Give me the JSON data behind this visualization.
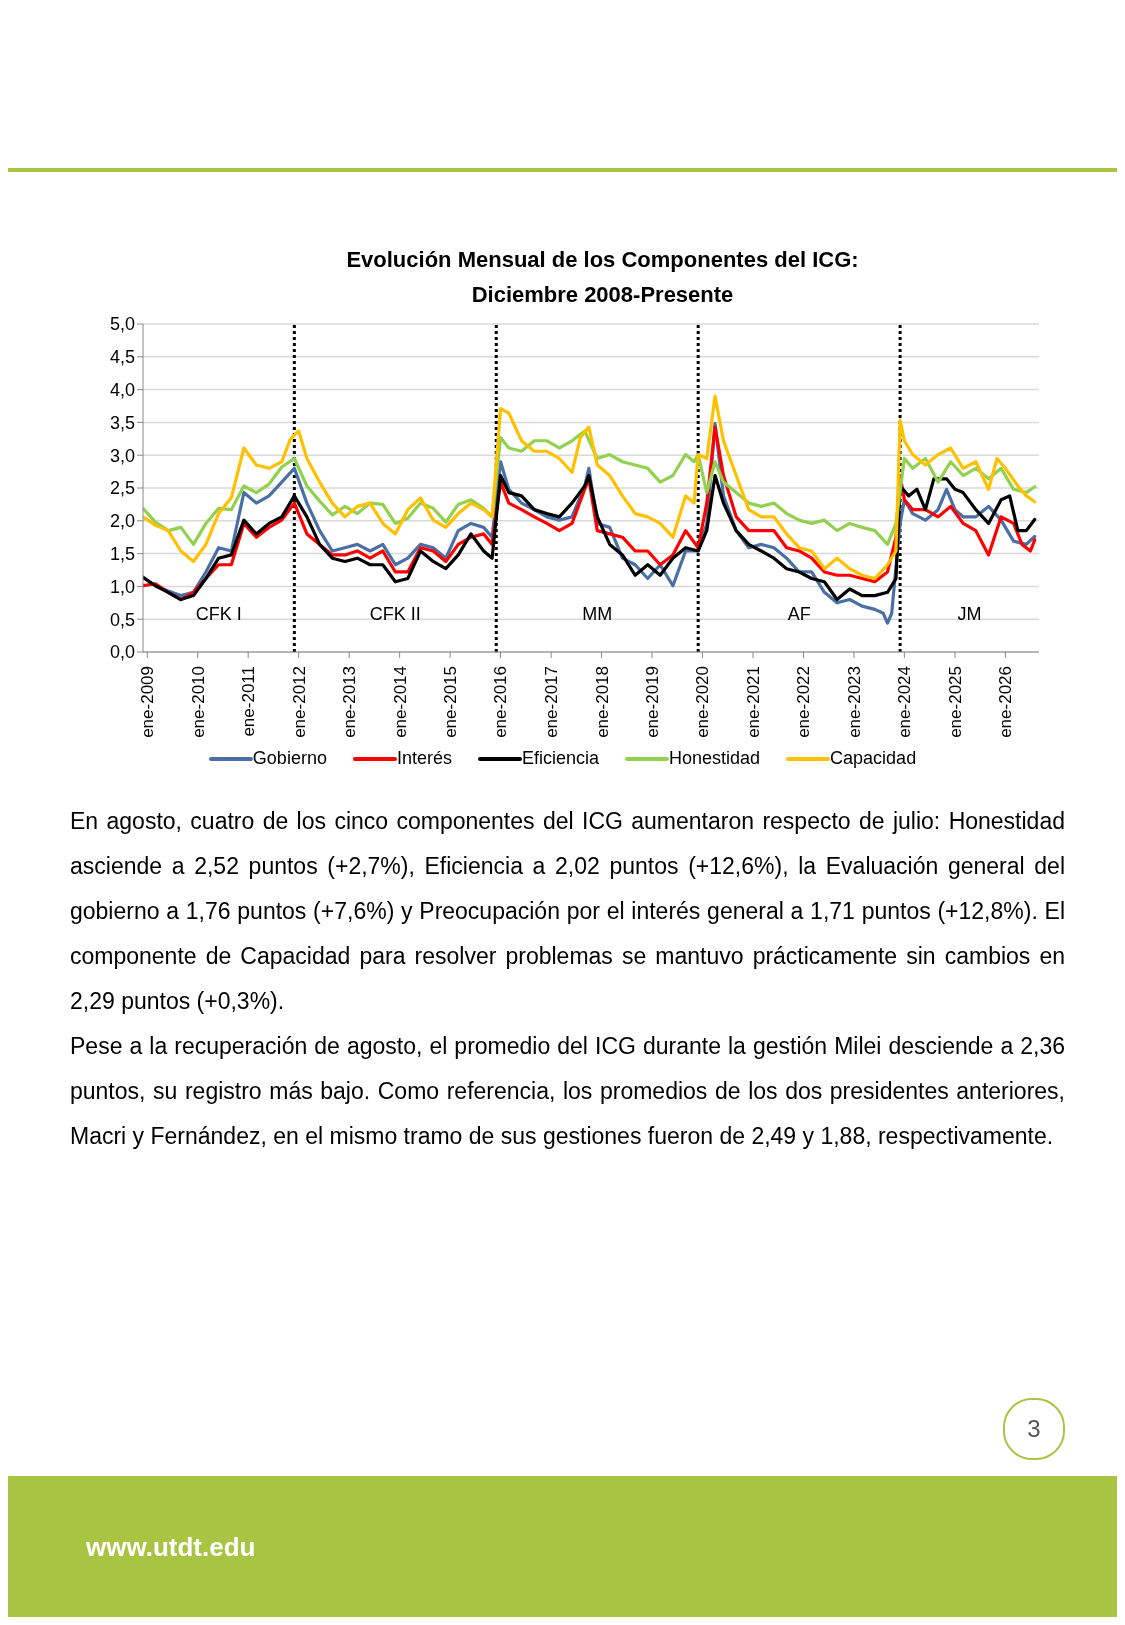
{
  "chart_data": {
    "type": "line",
    "title": "Evolución Mensual de los Componentes del ICG:\nDiciembre 2008-Presente",
    "xlim": [
      "2008-12",
      "2026-09"
    ],
    "xticks": [
      {
        "value": "2009-01",
        "label": "ene-2009"
      },
      {
        "value": "2010-01",
        "label": "ene-2010"
      },
      {
        "value": "2011-01",
        "label": "ene-2011"
      },
      {
        "value": "2012-01",
        "label": "ene-2012"
      },
      {
        "value": "2013-01",
        "label": "ene-2013"
      },
      {
        "value": "2014-01",
        "label": "ene-2014"
      },
      {
        "value": "2015-01",
        "label": "ene-2015"
      },
      {
        "value": "2016-01",
        "label": "ene-2016"
      },
      {
        "value": "2017-01",
        "label": "ene-2017"
      },
      {
        "value": "2018-01",
        "label": "ene-2018"
      },
      {
        "value": "2019-01",
        "label": "ene-2019"
      },
      {
        "value": "2020-01",
        "label": "ene-2020"
      },
      {
        "value": "2021-01",
        "label": "ene-2021"
      },
      {
        "value": "2022-01",
        "label": "ene-2022"
      },
      {
        "value": "2023-01",
        "label": "ene-2023"
      },
      {
        "value": "2024-01",
        "label": "ene-2024"
      },
      {
        "value": "2025-01",
        "label": "ene-2025"
      },
      {
        "value": "2026-01",
        "label": "ene-2026"
      }
    ],
    "ylim": [
      0,
      5
    ],
    "yticks": [
      {
        "value": 0,
        "label": "0,0"
      },
      {
        "value": 0.5,
        "label": "0,5"
      },
      {
        "value": 1,
        "label": "1,0"
      },
      {
        "value": 1.5,
        "label": "1,5"
      },
      {
        "value": 2,
        "label": "2,0"
      },
      {
        "value": 2.5,
        "label": "2,5"
      },
      {
        "value": 3,
        "label": "3,0"
      },
      {
        "value": 3.5,
        "label": "3,5"
      },
      {
        "value": 4,
        "label": "4,0"
      },
      {
        "value": 4.5,
        "label": "4,5"
      },
      {
        "value": 5,
        "label": "5,0"
      }
    ],
    "grid": "y",
    "legend": "bottom",
    "line_style": "solid",
    "series": [
      {
        "name": "Gobierno",
        "color": "#4a6fa5",
        "x": [
          "2008-12",
          "2009-03",
          "2009-06",
          "2009-09",
          "2009-12",
          "2010-03",
          "2010-06",
          "2010-09",
          "2010-12",
          "2011-03",
          "2011-06",
          "2011-09",
          "2011-12",
          "2012-03",
          "2012-06",
          "2012-09",
          "2012-12",
          "2013-03",
          "2013-06",
          "2013-09",
          "2013-12",
          "2014-03",
          "2014-06",
          "2014-09",
          "2014-12",
          "2015-03",
          "2015-06",
          "2015-09",
          "2015-11",
          "2016-01",
          "2016-03",
          "2016-06",
          "2016-09",
          "2016-12",
          "2017-03",
          "2017-06",
          "2017-09",
          "2017-10",
          "2017-12",
          "2018-03",
          "2018-06",
          "2018-09",
          "2018-12",
          "2019-03",
          "2019-06",
          "2019-09",
          "2019-12",
          "2020-02",
          "2020-04",
          "2020-06",
          "2020-09",
          "2020-12",
          "2021-03",
          "2021-06",
          "2021-09",
          "2021-12",
          "2022-03",
          "2022-06",
          "2022-09",
          "2022-12",
          "2023-03",
          "2023-06",
          "2023-08",
          "2023-09",
          "2023-10",
          "2023-12",
          "2024-01",
          "2024-03",
          "2024-06",
          "2024-09",
          "2024-11",
          "2025-01",
          "2025-03",
          "2025-06",
          "2025-09",
          "2025-12",
          "2026-03",
          "2026-06",
          "2026-08"
        ],
        "values": [
          1.14,
          1.01,
          0.93,
          0.86,
          0.91,
          1.22,
          1.59,
          1.54,
          2.43,
          2.27,
          2.38,
          2.59,
          2.8,
          2.27,
          1.85,
          1.54,
          1.59,
          1.64,
          1.54,
          1.64,
          1.33,
          1.43,
          1.64,
          1.59,
          1.43,
          1.85,
          1.96,
          1.9,
          1.75,
          2.9,
          2.48,
          2.27,
          2.17,
          2.06,
          2.01,
          2.06,
          2.53,
          2.8,
          1.96,
          1.9,
          1.43,
          1.33,
          1.12,
          1.33,
          1.01,
          1.54,
          1.54,
          1.96,
          3.48,
          2.38,
          1.85,
          1.59,
          1.64,
          1.59,
          1.43,
          1.22,
          1.22,
          0.91,
          0.75,
          0.8,
          0.7,
          0.65,
          0.59,
          0.44,
          0.59,
          1.96,
          2.32,
          2.11,
          2.01,
          2.17,
          2.48,
          2.17,
          2.06,
          2.06,
          2.22,
          2.01,
          1.69,
          1.64,
          1.76
        ]
      },
      {
        "name": "Interés",
        "color": "#ff0000",
        "x": [
          "2008-12",
          "2009-03",
          "2009-06",
          "2009-09",
          "2009-12",
          "2010-03",
          "2010-06",
          "2010-09",
          "2010-12",
          "2011-03",
          "2011-06",
          "2011-09",
          "2011-12",
          "2012-03",
          "2012-06",
          "2012-09",
          "2012-12",
          "2013-03",
          "2013-06",
          "2013-09",
          "2013-12",
          "2014-03",
          "2014-06",
          "2014-09",
          "2014-12",
          "2015-03",
          "2015-06",
          "2015-09",
          "2015-11",
          "2016-01",
          "2016-03",
          "2016-06",
          "2016-09",
          "2016-12",
          "2017-03",
          "2017-06",
          "2017-09",
          "2017-10",
          "2017-12",
          "2018-03",
          "2018-06",
          "2018-09",
          "2018-12",
          "2019-03",
          "2019-06",
          "2019-09",
          "2019-12",
          "2020-02",
          "2020-04",
          "2020-06",
          "2020-09",
          "2020-12",
          "2021-03",
          "2021-06",
          "2021-09",
          "2021-12",
          "2022-03",
          "2022-06",
          "2022-09",
          "2022-12",
          "2023-03",
          "2023-06",
          "2023-09",
          "2023-11",
          "2023-12",
          "2024-01",
          "2024-03",
          "2024-06",
          "2024-09",
          "2024-12",
          "2025-03",
          "2025-06",
          "2025-09",
          "2025-12",
          "2026-03",
          "2026-05",
          "2026-07",
          "2026-08"
        ],
        "values": [
          1.01,
          1.04,
          0.91,
          0.8,
          0.91,
          1.12,
          1.33,
          1.33,
          1.96,
          1.75,
          1.9,
          2.01,
          2.27,
          1.8,
          1.64,
          1.48,
          1.48,
          1.54,
          1.43,
          1.54,
          1.22,
          1.22,
          1.59,
          1.54,
          1.38,
          1.64,
          1.75,
          1.8,
          1.64,
          2.59,
          2.27,
          2.17,
          2.06,
          1.96,
          1.85,
          1.96,
          2.48,
          2.64,
          1.85,
          1.8,
          1.75,
          1.54,
          1.54,
          1.33,
          1.48,
          1.85,
          1.59,
          2.27,
          3.43,
          2.69,
          2.06,
          1.85,
          1.85,
          1.85,
          1.59,
          1.54,
          1.43,
          1.22,
          1.17,
          1.17,
          1.12,
          1.07,
          1.22,
          1.75,
          2.69,
          2.32,
          2.17,
          2.17,
          2.06,
          2.22,
          1.96,
          1.85,
          1.48,
          2.06,
          1.96,
          1.64,
          1.54,
          1.71
        ]
      },
      {
        "name": "Eficiencia",
        "color": "#000000",
        "x": [
          "2008-12",
          "2009-03",
          "2009-06",
          "2009-09",
          "2009-12",
          "2010-03",
          "2010-06",
          "2010-09",
          "2010-12",
          "2011-03",
          "2011-06",
          "2011-09",
          "2011-12",
          "2012-03",
          "2012-06",
          "2012-09",
          "2012-12",
          "2013-03",
          "2013-06",
          "2013-09",
          "2013-12",
          "2014-03",
          "2014-06",
          "2014-09",
          "2014-12",
          "2015-03",
          "2015-06",
          "2015-09",
          "2015-11",
          "2016-01",
          "2016-03",
          "2016-06",
          "2016-09",
          "2016-12",
          "2017-03",
          "2017-06",
          "2017-09",
          "2017-10",
          "2017-12",
          "2018-03",
          "2018-06",
          "2018-09",
          "2018-12",
          "2019-03",
          "2019-06",
          "2019-09",
          "2019-12",
          "2020-02",
          "2020-04",
          "2020-06",
          "2020-09",
          "2020-12",
          "2021-03",
          "2021-06",
          "2021-09",
          "2021-12",
          "2022-03",
          "2022-06",
          "2022-09",
          "2022-12",
          "2023-03",
          "2023-06",
          "2023-09",
          "2023-11",
          "2023-12",
          "2024-02",
          "2024-04",
          "2024-06",
          "2024-08",
          "2024-11",
          "2025-01",
          "2025-03",
          "2025-06",
          "2025-09",
          "2025-12",
          "2026-02",
          "2026-04",
          "2026-06",
          "2026-08"
        ],
        "values": [
          1.14,
          1.01,
          0.91,
          0.8,
          0.86,
          1.12,
          1.43,
          1.48,
          2.01,
          1.8,
          1.96,
          2.06,
          2.38,
          2.06,
          1.64,
          1.43,
          1.38,
          1.43,
          1.33,
          1.33,
          1.07,
          1.12,
          1.54,
          1.38,
          1.27,
          1.48,
          1.8,
          1.54,
          1.43,
          2.69,
          2.43,
          2.38,
          2.17,
          2.11,
          2.06,
          2.27,
          2.53,
          2.69,
          2.06,
          1.64,
          1.48,
          1.17,
          1.33,
          1.17,
          1.43,
          1.59,
          1.54,
          1.85,
          2.69,
          2.27,
          1.85,
          1.64,
          1.54,
          1.43,
          1.27,
          1.22,
          1.12,
          1.07,
          0.8,
          0.96,
          0.86,
          0.86,
          0.91,
          1.12,
          2.53,
          2.38,
          2.48,
          2.17,
          2.64,
          2.64,
          2.48,
          2.43,
          2.17,
          1.96,
          2.32,
          2.38,
          1.85,
          1.85,
          2.02
        ]
      },
      {
        "name": "Honestidad",
        "color": "#92d050",
        "x": [
          "2008-12",
          "2009-03",
          "2009-06",
          "2009-09",
          "2009-12",
          "2010-03",
          "2010-06",
          "2010-09",
          "2010-12",
          "2011-03",
          "2011-06",
          "2011-09",
          "2011-12",
          "2012-03",
          "2012-06",
          "2012-09",
          "2012-12",
          "2013-03",
          "2013-06",
          "2013-09",
          "2013-12",
          "2014-03",
          "2014-06",
          "2014-09",
          "2014-12",
          "2015-03",
          "2015-06",
          "2015-09",
          "2015-11",
          "2016-01",
          "2016-03",
          "2016-06",
          "2016-09",
          "2016-12",
          "2017-03",
          "2017-06",
          "2017-09",
          "2017-12",
          "2018-03",
          "2018-06",
          "2018-09",
          "2018-12",
          "2019-03",
          "2019-06",
          "2019-09",
          "2019-11",
          "2019-12",
          "2020-02",
          "2020-04",
          "2020-06",
          "2020-09",
          "2020-12",
          "2021-03",
          "2021-06",
          "2021-09",
          "2021-12",
          "2022-03",
          "2022-06",
          "2022-09",
          "2022-12",
          "2023-03",
          "2023-06",
          "2023-09",
          "2023-11",
          "2024-01",
          "2024-03",
          "2024-06",
          "2024-09",
          "2024-12",
          "2025-03",
          "2025-06",
          "2025-09",
          "2025-12",
          "2026-03",
          "2026-06",
          "2026-08"
        ],
        "values": [
          2.19,
          1.98,
          1.85,
          1.9,
          1.64,
          1.96,
          2.19,
          2.17,
          2.53,
          2.43,
          2.56,
          2.82,
          2.95,
          2.53,
          2.3,
          2.09,
          2.22,
          2.11,
          2.27,
          2.25,
          1.96,
          2.04,
          2.27,
          2.19,
          1.98,
          2.25,
          2.32,
          2.19,
          2.06,
          3.27,
          3.11,
          3.06,
          3.22,
          3.22,
          3.11,
          3.22,
          3.37,
          2.95,
          3.01,
          2.9,
          2.85,
          2.8,
          2.59,
          2.69,
          3.01,
          2.9,
          3.01,
          2.43,
          2.9,
          2.59,
          2.43,
          2.27,
          2.22,
          2.27,
          2.11,
          2.01,
          1.96,
          2.01,
          1.85,
          1.96,
          1.9,
          1.85,
          1.64,
          1.96,
          2.95,
          2.8,
          2.95,
          2.59,
          2.9,
          2.69,
          2.8,
          2.64,
          2.8,
          2.48,
          2.43,
          2.52
        ]
      },
      {
        "name": "Capacidad",
        "color": "#ffc000",
        "x": [
          "2008-12",
          "2009-03",
          "2009-06",
          "2009-09",
          "2009-12",
          "2010-03",
          "2010-06",
          "2010-09",
          "2010-12",
          "2011-03",
          "2011-06",
          "2011-09",
          "2011-11",
          "2012-01",
          "2012-03",
          "2012-06",
          "2012-09",
          "2012-12",
          "2013-03",
          "2013-06",
          "2013-09",
          "2013-12",
          "2014-03",
          "2014-06",
          "2014-09",
          "2014-12",
          "2015-03",
          "2015-06",
          "2015-09",
          "2015-11",
          "2016-01",
          "2016-03",
          "2016-06",
          "2016-09",
          "2016-12",
          "2017-03",
          "2017-06",
          "2017-08",
          "2017-10",
          "2017-12",
          "2018-03",
          "2018-06",
          "2018-09",
          "2018-12",
          "2019-03",
          "2019-06",
          "2019-09",
          "2019-11",
          "2019-12",
          "2020-02",
          "2020-04",
          "2020-06",
          "2020-09",
          "2020-12",
          "2021-03",
          "2021-06",
          "2021-09",
          "2021-12",
          "2022-03",
          "2022-06",
          "2022-09",
          "2022-12",
          "2023-03",
          "2023-06",
          "2023-09",
          "2023-11",
          "2023-12",
          "2024-01",
          "2024-03",
          "2024-06",
          "2024-09",
          "2024-12",
          "2025-03",
          "2025-06",
          "2025-09",
          "2025-11",
          "2026-01",
          "2026-04",
          "2026-06",
          "2026-08"
        ],
        "values": [
          2.06,
          1.93,
          1.85,
          1.54,
          1.38,
          1.64,
          2.11,
          2.35,
          3.11,
          2.85,
          2.8,
          2.9,
          3.24,
          3.37,
          2.95,
          2.59,
          2.27,
          2.06,
          2.22,
          2.27,
          1.96,
          1.8,
          2.17,
          2.35,
          2.01,
          1.9,
          2.11,
          2.27,
          2.17,
          2.06,
          3.71,
          3.64,
          3.22,
          3.06,
          3.06,
          2.95,
          2.74,
          3.27,
          3.43,
          2.85,
          2.69,
          2.38,
          2.11,
          2.06,
          1.96,
          1.75,
          2.38,
          2.27,
          3.01,
          2.95,
          3.9,
          3.22,
          2.69,
          2.17,
          2.06,
          2.06,
          1.8,
          1.59,
          1.54,
          1.27,
          1.43,
          1.27,
          1.17,
          1.12,
          1.33,
          1.54,
          3.53,
          3.22,
          3.01,
          2.85,
          3.01,
          3.11,
          2.8,
          2.9,
          2.48,
          2.95,
          2.8,
          2.53,
          2.38,
          2.29
        ]
      }
    ],
    "ref_lines": [
      {
        "axis": "x",
        "value": "2011-12",
        "color": "#000000",
        "line_style": "dotted"
      },
      {
        "axis": "x",
        "value": "2015-12",
        "color": "#000000",
        "line_style": "dotted"
      },
      {
        "axis": "x",
        "value": "2019-12",
        "color": "#000000",
        "line_style": "dotted"
      },
      {
        "axis": "x",
        "value": "2023-12",
        "color": "#000000",
        "line_style": "dotted"
      }
    ],
    "annotations": [
      "CFK I",
      "CFK II",
      "MM",
      "AF",
      "JM",
      "En agosto, cuatro de los cinco componentes del ICG aumentaron respecto de julio: Honestidad asciende a 2,52 puntos (+2,7%), Eficiencia a 2,02 puntos (+12,6%), la Evaluación general del gobierno a 1,76 puntos (+7,6%) y Preocupación por el interés general a 1,71 puntos (+12,8%). El componente de Capacidad para resolver problemas se mantuvo prácticamente sin cambios en 2,29 puntos (+0,3%).",
      "Pese a la recuperación de agosto, el promedio del ICG durante la gestión Milei desciende a 2,36 puntos, su registro más bajo. Como referencia, los promedios de los dos presidentes anteriores, Macri y Fernández, en el mismo tramo de sus gestiones fueron de 2,49 y 1,88, respectivamente.",
      "3",
      "www.utdt.edu"
    ]
  }
}
